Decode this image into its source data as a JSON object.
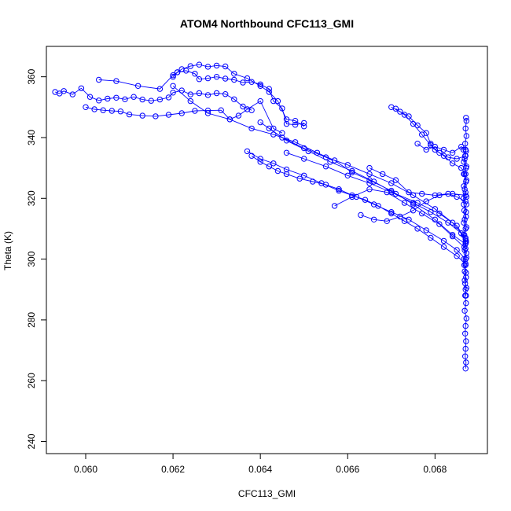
{
  "chart_data": {
    "type": "scatter",
    "title": "ATOM4 Northbound CFC113_GMI",
    "xlabel": "CFC113_GMI",
    "ylabel": "Theta (K)",
    "xlim": [
      0.0591,
      0.0692
    ],
    "ylim": [
      236,
      370
    ],
    "x_ticks": [
      "0.060",
      "0.062",
      "0.064",
      "0.066",
      "0.068"
    ],
    "x_tick_values": [
      0.06,
      0.062,
      0.064,
      0.066,
      0.068
    ],
    "y_ticks": [
      "240",
      "260",
      "280",
      "300",
      "320",
      "340",
      "360"
    ],
    "y_tick_values": [
      240,
      260,
      280,
      300,
      320,
      340,
      360
    ],
    "grid": false,
    "marker": "open-circle",
    "connected": true,
    "series_color": "#0000ff",
    "series": [
      {
        "points": [
          [
            0.0593,
            355.0
          ],
          [
            0.0594,
            354.5
          ],
          [
            0.0595,
            355.3
          ],
          [
            0.0597,
            354.2
          ],
          [
            0.0599,
            356.2
          ],
          [
            0.0601,
            353.4
          ],
          [
            0.0603,
            352.2
          ],
          [
            0.0605,
            352.8
          ],
          [
            0.0607,
            353.1
          ],
          [
            0.0609,
            352.6
          ],
          [
            0.0611,
            353.4
          ],
          [
            0.0613,
            352.5
          ],
          [
            0.0615,
            352.1
          ],
          [
            0.0617,
            352.5
          ],
          [
            0.0619,
            353.2
          ],
          [
            0.062,
            354.8
          ],
          [
            0.0622,
            355.5
          ],
          [
            0.0624,
            354.2
          ],
          [
            0.0626,
            354.6
          ],
          [
            0.0628,
            354.0
          ],
          [
            0.063,
            354.6
          ],
          [
            0.0632,
            354.3
          ],
          [
            0.0634,
            352.6
          ],
          [
            0.0636,
            350.2
          ],
          [
            0.0638,
            349.0
          ]
        ]
      },
      {
        "points": [
          [
            0.06,
            350.0
          ],
          [
            0.0602,
            349.3
          ],
          [
            0.0604,
            349.0
          ],
          [
            0.0606,
            348.8
          ],
          [
            0.0608,
            348.6
          ],
          [
            0.061,
            347.6
          ],
          [
            0.0613,
            347.2
          ],
          [
            0.0616,
            347.0
          ],
          [
            0.0619,
            347.5
          ],
          [
            0.0622,
            348.0
          ],
          [
            0.0625,
            348.8
          ],
          [
            0.0628,
            348.9
          ],
          [
            0.0631,
            349.0
          ],
          [
            0.0633,
            346.0
          ],
          [
            0.0635,
            347.2
          ],
          [
            0.0637,
            349.3
          ],
          [
            0.064,
            352.0
          ],
          [
            0.0643,
            343.0
          ],
          [
            0.0645,
            341.5
          ]
        ]
      },
      {
        "points": [
          [
            0.0603,
            359.0
          ],
          [
            0.0607,
            358.6
          ],
          [
            0.0612,
            357.0
          ],
          [
            0.0617,
            356.0
          ],
          [
            0.062,
            360.5
          ],
          [
            0.0621,
            361.5
          ],
          [
            0.0623,
            362.0
          ],
          [
            0.0625,
            361.0
          ],
          [
            0.0626,
            359.2
          ],
          [
            0.0628,
            359.5
          ],
          [
            0.063,
            360.0
          ],
          [
            0.0632,
            359.4
          ],
          [
            0.0634,
            359.0
          ],
          [
            0.0636,
            358.1
          ],
          [
            0.0638,
            358.3
          ],
          [
            0.064,
            357.5
          ],
          [
            0.0642,
            356.0
          ],
          [
            0.0643,
            352.0
          ],
          [
            0.0645,
            349.6
          ],
          [
            0.0646,
            344.5
          ],
          [
            0.0648,
            344.2
          ],
          [
            0.065,
            344.8
          ]
        ]
      },
      {
        "points": [
          [
            0.062,
            360.0
          ],
          [
            0.0621,
            361.5
          ],
          [
            0.0622,
            362.5
          ],
          [
            0.0624,
            363.5
          ],
          [
            0.0626,
            364.0
          ],
          [
            0.0628,
            363.3
          ],
          [
            0.063,
            363.7
          ],
          [
            0.0632,
            363.4
          ],
          [
            0.0634,
            361.0
          ],
          [
            0.0637,
            359.5
          ],
          [
            0.064,
            357.0
          ],
          [
            0.0642,
            355.0
          ],
          [
            0.0644,
            352.0
          ],
          [
            0.0646,
            346.0
          ],
          [
            0.0648,
            345.5
          ],
          [
            0.065,
            343.7
          ]
        ]
      },
      {
        "points": [
          [
            0.062,
            357.0
          ],
          [
            0.0624,
            352.0
          ],
          [
            0.0628,
            348.0
          ],
          [
            0.0633,
            346.0
          ],
          [
            0.0638,
            343.0
          ],
          [
            0.0643,
            341.0
          ],
          [
            0.0648,
            338.5
          ],
          [
            0.0653,
            335.0
          ],
          [
            0.0657,
            332.5
          ],
          [
            0.0661,
            328.5
          ],
          [
            0.0665,
            326.0
          ],
          [
            0.067,
            322.5
          ],
          [
            0.0675,
            318.0
          ],
          [
            0.068,
            313.0
          ],
          [
            0.0684,
            308.0
          ],
          [
            0.0687,
            305.0
          ]
        ]
      },
      {
        "points": [
          [
            0.064,
            345.0
          ],
          [
            0.0645,
            340.0
          ],
          [
            0.065,
            336.5
          ],
          [
            0.0655,
            333.5
          ],
          [
            0.066,
            331.0
          ],
          [
            0.0665,
            328.0
          ],
          [
            0.067,
            325.0
          ],
          [
            0.0675,
            321.0
          ],
          [
            0.068,
            316.5
          ],
          [
            0.0684,
            312.0
          ],
          [
            0.0687,
            307.0
          ]
        ]
      },
      {
        "points": [
          [
            0.0642,
            343.0
          ],
          [
            0.0646,
            339.0
          ],
          [
            0.0651,
            335.5
          ],
          [
            0.0656,
            332.0
          ],
          [
            0.0661,
            329.0
          ],
          [
            0.0666,
            325.5
          ],
          [
            0.0671,
            321.5
          ],
          [
            0.0676,
            318.5
          ],
          [
            0.0681,
            315.0
          ],
          [
            0.0685,
            311.0
          ],
          [
            0.0687,
            306.5
          ]
        ]
      },
      {
        "points": [
          [
            0.0638,
            334.0
          ],
          [
            0.064,
            332.0
          ],
          [
            0.0642,
            330.5
          ],
          [
            0.0644,
            329.0
          ],
          [
            0.0646,
            328.0
          ],
          [
            0.0649,
            326.5
          ],
          [
            0.0652,
            325.5
          ],
          [
            0.0655,
            324.5
          ],
          [
            0.0658,
            323.0
          ],
          [
            0.0661,
            321.0
          ],
          [
            0.0664,
            319.5
          ],
          [
            0.0667,
            317.5
          ],
          [
            0.067,
            315.0
          ],
          [
            0.0673,
            312.5
          ],
          [
            0.0676,
            310.0
          ],
          [
            0.0679,
            307.0
          ],
          [
            0.0682,
            304.0
          ],
          [
            0.0685,
            301.0
          ],
          [
            0.0687,
            298.5
          ]
        ]
      },
      {
        "points": [
          [
            0.0637,
            335.5
          ],
          [
            0.064,
            333.0
          ],
          [
            0.0643,
            331.5
          ],
          [
            0.0646,
            329.5
          ],
          [
            0.065,
            327.5
          ],
          [
            0.0654,
            325.0
          ],
          [
            0.0658,
            322.5
          ],
          [
            0.0662,
            320.5
          ],
          [
            0.0666,
            318.0
          ],
          [
            0.067,
            315.5
          ],
          [
            0.0674,
            313.0
          ],
          [
            0.0678,
            309.5
          ],
          [
            0.0682,
            306.0
          ],
          [
            0.0685,
            303.0
          ],
          [
            0.0687,
            300.0
          ]
        ]
      },
      {
        "points": [
          [
            0.0646,
            335.0
          ],
          [
            0.065,
            333.0
          ],
          [
            0.0655,
            330.5
          ],
          [
            0.066,
            327.5
          ],
          [
            0.0665,
            325.0
          ],
          [
            0.067,
            322.0
          ],
          [
            0.0675,
            318.5
          ],
          [
            0.0679,
            315.5
          ],
          [
            0.0683,
            312.0
          ],
          [
            0.0686,
            308.5
          ],
          [
            0.0687,
            305.5
          ]
        ]
      },
      {
        "points": [
          [
            0.0657,
            317.5
          ],
          [
            0.0661,
            320.5
          ],
          [
            0.0665,
            323.0
          ],
          [
            0.0669,
            322.0
          ],
          [
            0.0673,
            318.5
          ],
          [
            0.0677,
            315.0
          ],
          [
            0.0681,
            311.5
          ],
          [
            0.0684,
            307.5
          ],
          [
            0.0687,
            303.5
          ]
        ]
      },
      {
        "points": [
          [
            0.0663,
            314.5
          ],
          [
            0.0666,
            313.0
          ],
          [
            0.0669,
            312.5
          ],
          [
            0.0672,
            314.0
          ],
          [
            0.0675,
            316.0
          ],
          [
            0.0678,
            319.0
          ],
          [
            0.0681,
            321.0
          ],
          [
            0.0684,
            321.5
          ],
          [
            0.0687,
            321.0
          ]
        ]
      },
      {
        "points": [
          [
            0.067,
            350.0
          ],
          [
            0.0672,
            348.5
          ],
          [
            0.0674,
            347.0
          ],
          [
            0.0676,
            344.0
          ],
          [
            0.0678,
            341.5
          ],
          [
            0.0679,
            338.0
          ],
          [
            0.068,
            336.0
          ],
          [
            0.0682,
            334.0
          ],
          [
            0.0684,
            331.5
          ],
          [
            0.0686,
            330.0
          ],
          [
            0.0687,
            328.0
          ]
        ]
      },
      {
        "points": [
          [
            0.0671,
            349.5
          ],
          [
            0.0673,
            347.5
          ],
          [
            0.0675,
            344.5
          ],
          [
            0.0677,
            341.0
          ],
          [
            0.0679,
            337.5
          ],
          [
            0.0681,
            335.0
          ],
          [
            0.0683,
            333.5
          ],
          [
            0.0685,
            333.0
          ],
          [
            0.0687,
            334.0
          ]
        ]
      },
      {
        "points": [
          [
            0.0676,
            338.0
          ],
          [
            0.0678,
            336.0
          ],
          [
            0.068,
            337.0
          ],
          [
            0.0682,
            336.0
          ],
          [
            0.0684,
            335.0
          ],
          [
            0.0686,
            337.0
          ],
          [
            0.0687,
            336.0
          ]
        ]
      },
      {
        "points": [
          [
            0.0665,
            330.0
          ],
          [
            0.0668,
            328.0
          ],
          [
            0.0671,
            326.0
          ],
          [
            0.0674,
            322.0
          ],
          [
            0.0677,
            321.5
          ],
          [
            0.068,
            321.0
          ],
          [
            0.0683,
            321.5
          ],
          [
            0.0685,
            320.5
          ],
          [
            0.0687,
            319.0
          ]
        ]
      },
      {
        "points": [
          [
            0.0687,
            264.0
          ],
          [
            0.06871,
            266.0
          ],
          [
            0.06869,
            268.0
          ],
          [
            0.0687,
            270.5
          ],
          [
            0.06871,
            273.0
          ],
          [
            0.06869,
            275.5
          ],
          [
            0.0687,
            278.0
          ],
          [
            0.06872,
            280.5
          ],
          [
            0.06868,
            283.0
          ],
          [
            0.06871,
            285.5
          ],
          [
            0.06869,
            288.0
          ],
          [
            0.06872,
            290.5
          ],
          [
            0.06868,
            293.0
          ],
          [
            0.06871,
            295.5
          ],
          [
            0.06867,
            298.0
          ],
          [
            0.06872,
            300.5
          ],
          [
            0.06868,
            303.0
          ],
          [
            0.06871,
            305.5
          ],
          [
            0.06867,
            308.0
          ],
          [
            0.06872,
            310.5
          ],
          [
            0.06868,
            313.0
          ],
          [
            0.06871,
            315.5
          ],
          [
            0.06866,
            318.0
          ],
          [
            0.06872,
            320.5
          ],
          [
            0.06868,
            323.0
          ],
          [
            0.06871,
            325.5
          ],
          [
            0.06866,
            328.0
          ],
          [
            0.06872,
            330.5
          ],
          [
            0.06868,
            333.0
          ],
          [
            0.06871,
            335.5
          ],
          [
            0.06869,
            338.0
          ],
          [
            0.06872,
            340.5
          ],
          [
            0.0687,
            343.0
          ],
          [
            0.06872,
            345.5
          ],
          [
            0.06871,
            346.5
          ]
        ]
      },
      {
        "points": [
          [
            0.06865,
            336.0
          ],
          [
            0.06869,
            334.0
          ],
          [
            0.06866,
            332.0
          ],
          [
            0.06871,
            330.0
          ],
          [
            0.06867,
            328.0
          ],
          [
            0.06872,
            326.0
          ],
          [
            0.06866,
            324.0
          ],
          [
            0.0687,
            322.0
          ],
          [
            0.06865,
            320.0
          ],
          [
            0.06872,
            318.0
          ],
          [
            0.06867,
            316.0
          ],
          [
            0.06871,
            314.0
          ],
          [
            0.06866,
            312.0
          ],
          [
            0.0687,
            310.0
          ],
          [
            0.06865,
            308.0
          ],
          [
            0.06871,
            306.0
          ],
          [
            0.06867,
            304.0
          ],
          [
            0.06872,
            302.0
          ],
          [
            0.06866,
            300.0
          ],
          [
            0.0687,
            298.0
          ],
          [
            0.06868,
            296.0
          ],
          [
            0.06871,
            294.0
          ],
          [
            0.06869,
            292.0
          ],
          [
            0.0687,
            290.0
          ],
          [
            0.06871,
            288.0
          ]
        ]
      }
    ]
  }
}
